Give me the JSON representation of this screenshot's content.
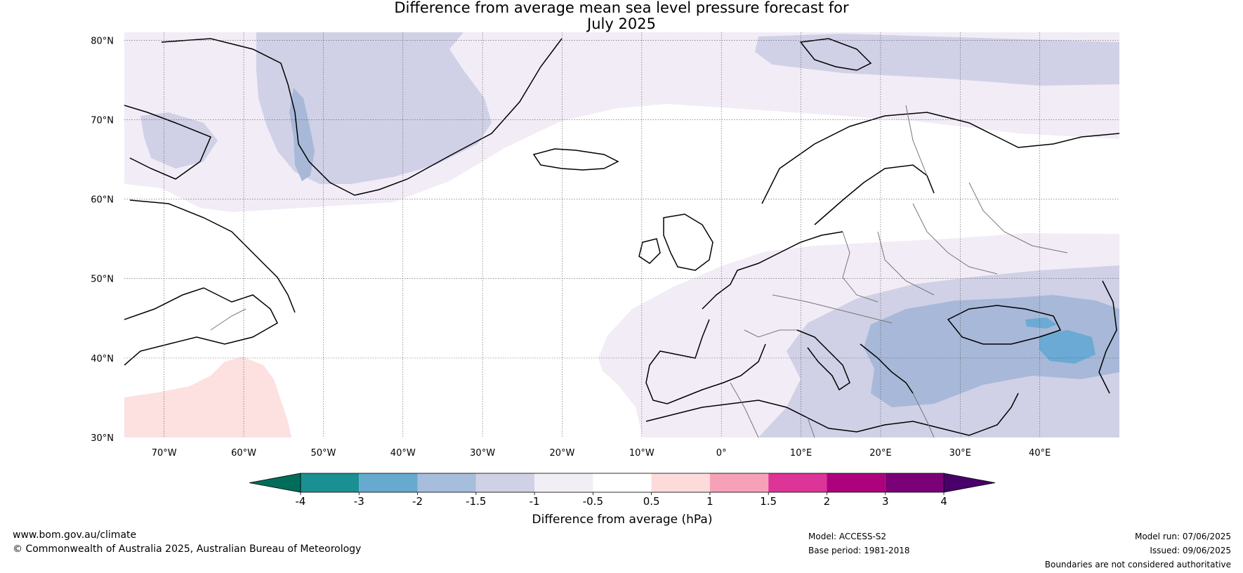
{
  "title": {
    "line1": "Difference from average mean sea level pressure forecast for",
    "line2": "July 2025"
  },
  "map": {
    "lat_labels": [
      "80°N",
      "70°N",
      "60°N",
      "50°N",
      "40°N",
      "30°N"
    ],
    "lon_labels": [
      "70°W",
      "60°W",
      "50°W",
      "40°W",
      "30°W",
      "20°W",
      "10°W",
      "0°",
      "10°E",
      "20°E",
      "30°E",
      "40°E"
    ],
    "extent": {
      "lon": [
        -75,
        50
      ],
      "lat": [
        30,
        81
      ]
    },
    "colors": {
      "coast": "#000000",
      "borders": "#777777",
      "anomaly_-2_-1.5": "#a8b8d8",
      "anomaly_-1.5_-1": "#d0d1e6",
      "anomaly_-1_-0.5": "#f2ecf6",
      "anomaly_-3_-2": "#6aaad4",
      "anomaly_0.5_1": "#fde0e0"
    }
  },
  "colorbar": {
    "label": "Difference from average (hPa)",
    "ticks": [
      "-4",
      "-3",
      "-2",
      "-1.5",
      "-1",
      "-0.5",
      "0.5",
      "1",
      "1.5",
      "2",
      "3",
      "4"
    ],
    "colors": [
      "#1b9092",
      "#67a9cf",
      "#a6bddb",
      "#d0d1e6",
      "#f1eef6",
      "#ffffff",
      "#fddbdb",
      "#f7a1b8",
      "#dd3497",
      "#ae017e",
      "#7a0177"
    ],
    "extend_low": "#006d5b",
    "extend_high": "#49006a"
  },
  "footer": {
    "url": "www.bom.gov.au/climate",
    "copyright": "© Commonwealth of Australia 2025, Australian Bureau of Meteorology",
    "model": "Model: ACCESS-S2",
    "base_period": "Base period: 1981-2018",
    "model_run": "Model run: 07/06/2025",
    "issued": "Issued: 09/06/2025",
    "disclaimer": "Boundaries are not considered authoritative"
  }
}
